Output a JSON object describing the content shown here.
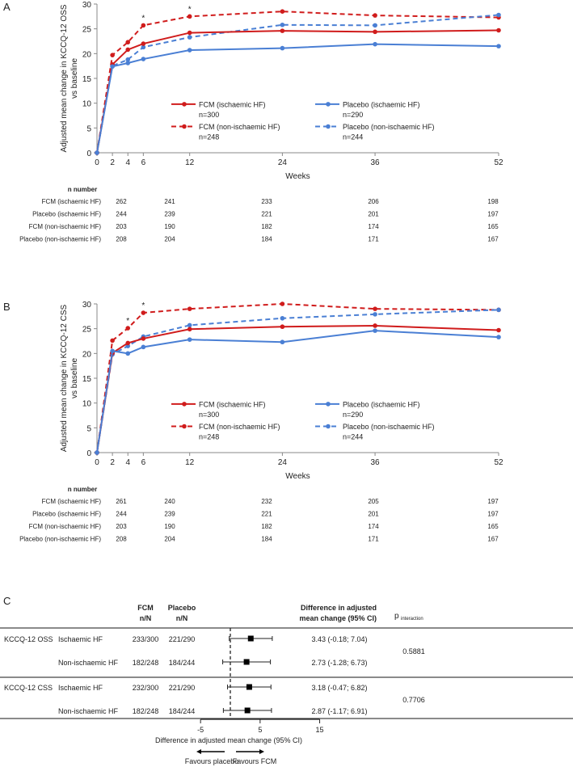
{
  "chart_data": [
    {
      "type": "line",
      "panel_label": "A",
      "ylabel": [
        "Adjusted mean change in KCCQ-12 OSS",
        "vs baseline"
      ],
      "xlabel": "Weeks",
      "x": [
        0,
        2,
        4,
        6,
        12,
        24,
        36,
        52
      ],
      "xticks": [
        "0",
        "2",
        "4",
        "6",
        "12",
        "24",
        "36",
        "52"
      ],
      "ylim": [
        0,
        30
      ],
      "yticks": [
        "0",
        "5",
        "10",
        "15",
        "20",
        "25",
        "30"
      ],
      "series": [
        {
          "name": "FCM (ischaemic HF)",
          "n": "n=300",
          "color": "#d01c1c",
          "dashed": false,
          "values": [
            0,
            17.8,
            20.8,
            22.0,
            24.2,
            24.6,
            24.4,
            24.7
          ]
        },
        {
          "name": "Placebo (ischaemic HF)",
          "n": "n=290",
          "color": "#4a7fd4",
          "dashed": false,
          "values": [
            0,
            17.4,
            18.1,
            18.9,
            20.7,
            21.1,
            21.9,
            21.5
          ]
        },
        {
          "name": "FCM (non-ischaemic HF)",
          "n": "n=248",
          "color": "#d01c1c",
          "dashed": true,
          "values": [
            0,
            19.7,
            22.3,
            25.7,
            27.5,
            28.5,
            27.7,
            27.3
          ]
        },
        {
          "name": "Placebo (non-ischaemic HF)",
          "n": "n=244",
          "color": "#4a7fd4",
          "dashed": true,
          "values": [
            0,
            17.5,
            18.8,
            21.3,
            23.3,
            25.8,
            25.7,
            27.8
          ]
        }
      ],
      "asterisks": {
        "weeks": [
          6,
          12
        ],
        "label": "*"
      },
      "n_table": {
        "title": "n number",
        "rows": [
          {
            "label": "FCM (ischaemic HF)",
            "values": [
              "262",
              "241",
              "233",
              "206",
              "198"
            ]
          },
          {
            "label": "Placebo (ischaemic HF)",
            "values": [
              "244",
              "239",
              "221",
              "201",
              "197"
            ]
          },
          {
            "label": "FCM (non-ischaemic HF)",
            "values": [
              "203",
              "190",
              "182",
              "174",
              "165"
            ]
          },
          {
            "label": "Placebo (non-ischaemic HF)",
            "values": [
              "208",
              "204",
              "184",
              "171",
              "167"
            ]
          }
        ]
      }
    },
    {
      "type": "line",
      "panel_label": "B",
      "ylabel": [
        "Adjusted mean change in KCCQ-12 CSS",
        "vs baseline"
      ],
      "xlabel": "Weeks",
      "x": [
        0,
        2,
        4,
        6,
        12,
        24,
        36,
        52
      ],
      "xticks": [
        "0",
        "2",
        "4",
        "6",
        "12",
        "24",
        "36",
        "52"
      ],
      "ylim": [
        0,
        30
      ],
      "yticks": [
        "0",
        "5",
        "10",
        "15",
        "20",
        "25",
        "30"
      ],
      "series": [
        {
          "name": "FCM (ischaemic HF)",
          "n": "n=300",
          "color": "#d01c1c",
          "dashed": false,
          "values": [
            0,
            20.1,
            22.1,
            23.0,
            24.9,
            25.4,
            25.6,
            24.7
          ]
        },
        {
          "name": "Placebo (ischaemic HF)",
          "n": "n=290",
          "color": "#4a7fd4",
          "dashed": false,
          "values": [
            0,
            20.5,
            20.0,
            21.3,
            22.8,
            22.3,
            24.6,
            23.3
          ]
        },
        {
          "name": "FCM (non-ischaemic HF)",
          "n": "n=248",
          "color": "#d01c1c",
          "dashed": true,
          "values": [
            0,
            22.6,
            25.1,
            28.2,
            29.0,
            30.0,
            29.0,
            28.8
          ]
        },
        {
          "name": "Placebo (non-ischaemic HF)",
          "n": "n=244",
          "color": "#4a7fd4",
          "dashed": true,
          "values": [
            0,
            19.8,
            21.5,
            23.4,
            25.7,
            27.1,
            27.9,
            28.8
          ]
        }
      ],
      "asterisks": {
        "weeks": [
          4,
          6
        ],
        "label": "*"
      },
      "n_table": {
        "title": "n number",
        "rows": [
          {
            "label": "FCM (ischaemic HF)",
            "values": [
              "261",
              "240",
              "232",
              "205",
              "197"
            ]
          },
          {
            "label": "Placebo (ischaemic HF)",
            "values": [
              "244",
              "239",
              "221",
              "201",
              "197"
            ]
          },
          {
            "label": "FCM (non-ischaemic HF)",
            "values": [
              "203",
              "190",
              "182",
              "174",
              "165"
            ]
          },
          {
            "label": "Placebo (non-ischaemic HF)",
            "values": [
              "208",
              "204",
              "184",
              "171",
              "167"
            ]
          }
        ]
      }
    },
    {
      "type": "forest",
      "panel_label": "C",
      "headers": {
        "fcm": [
          "FCM",
          "n/N"
        ],
        "placebo": [
          "Placebo",
          "n/N"
        ],
        "diff": [
          "Difference in adjusted",
          "mean change (95% CI)"
        ],
        "p": "p",
        "p_sub": "interaction"
      },
      "groups": [
        {
          "label": "KCCQ-12 OSS",
          "p": "0.5881",
          "rows": [
            {
              "sub": "Ischaemic HF",
              "fcm": "233/300",
              "placebo": "221/290",
              "est": 3.43,
              "lo": -0.18,
              "hi": 7.04,
              "text": "3.43 (-0.18; 7.04)"
            },
            {
              "sub": "Non-ischaemic HF",
              "fcm": "182/248",
              "placebo": "184/244",
              "est": 2.73,
              "lo": -1.28,
              "hi": 6.73,
              "text": "2.73 (-1.28; 6.73)"
            }
          ]
        },
        {
          "label": "KCCQ-12 CSS",
          "p": "0.7706",
          "rows": [
            {
              "sub": "Ischaemic HF",
              "fcm": "232/300",
              "placebo": "221/290",
              "est": 3.18,
              "lo": -0.47,
              "hi": 6.82,
              "text": "3.18 (-0.47; 6.82)"
            },
            {
              "sub": "Non-ischaemic HF",
              "fcm": "182/248",
              "placebo": "184/244",
              "est": 2.87,
              "lo": -1.17,
              "hi": 6.91,
              "text": "2.87 (-1.17; 6.91)"
            }
          ]
        }
      ],
      "xticks": [
        -5,
        5,
        15
      ],
      "xtick_labels": [
        "-5",
        "5",
        "15"
      ],
      "reference": 0,
      "xlabel": "Difference in adjusted mean change (95% CI)",
      "favours_left": "Favours placebo",
      "favours_right": "Favours FCM"
    }
  ]
}
